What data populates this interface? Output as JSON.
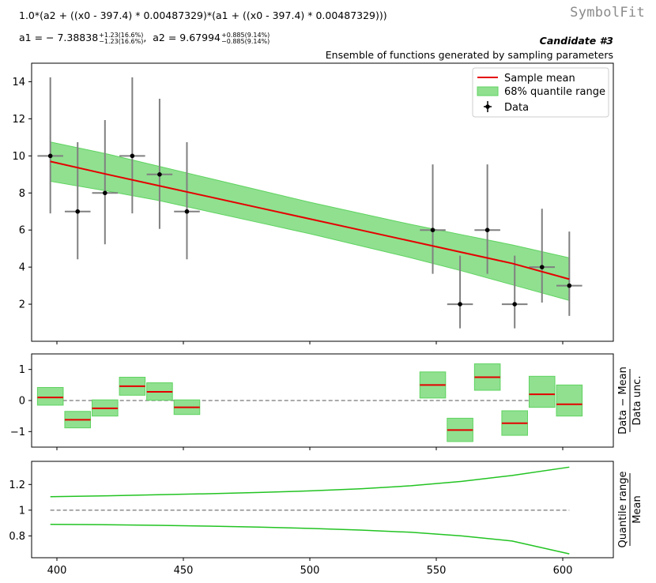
{
  "header": {
    "formula": "1.0*(a2 + ((x0 - 397.4) * 0.00487329)*(a1 + ((x0 - 397.4) * 0.00487329)))",
    "a1_label": "a1 = − 7.38838",
    "a1_up": "+1.23(16.6%)",
    "a1_down": "−1.23(16.6%)",
    "a2_label": "a2 = 9.67994",
    "a2_up": "+0.885(9.14%)",
    "a2_down": "−0.885(9.14%)",
    "logo": "SymbolFit",
    "candidate": "Candidate #3",
    "subtitle": "Ensemble of functions generated by sampling parameters"
  },
  "colors": {
    "mean": "#e50000",
    "band": "#90e090",
    "band_edge": "#5fd35f",
    "data": "#000000",
    "err": "#808080",
    "ratio": "#22c322"
  },
  "chart_data": [
    {
      "type": "scatter",
      "panel": "main",
      "x": [
        397.4,
        408.2,
        419.0,
        429.8,
        440.6,
        451.4,
        548.6,
        559.4,
        570.2,
        581.0,
        591.8,
        602.6
      ],
      "x_err": [
        5.4,
        5.4,
        5.4,
        5.4,
        5.4,
        5.4,
        5.4,
        5.4,
        5.4,
        5.4,
        5.4,
        5.4
      ],
      "y": [
        10,
        7,
        8,
        10,
        9,
        7,
        6,
        2,
        6,
        2,
        4,
        3
      ],
      "y_err_up": [
        4.24,
        3.74,
        3.93,
        4.24,
        4.08,
        3.74,
        3.54,
        2.62,
        3.54,
        2.62,
        3.15,
        2.92
      ],
      "y_err_down": [
        3.1,
        2.58,
        2.77,
        3.1,
        2.94,
        2.58,
        2.36,
        1.3,
        2.36,
        1.3,
        1.91,
        1.63
      ],
      "mean_curve": {
        "x": [
          397.4,
          420,
          440,
          460,
          480,
          500,
          520,
          540,
          560,
          580,
          602.6
        ],
        "y": [
          9.7,
          9.0,
          8.4,
          7.8,
          7.2,
          6.6,
          6.0,
          5.4,
          4.8,
          4.2,
          3.35
        ]
      },
      "band_lower": [
        8.63,
        8.1,
        7.6,
        7.0,
        6.4,
        5.8,
        5.15,
        4.5,
        3.8,
        3.05,
        2.2
      ],
      "band_upper": [
        10.75,
        10.1,
        9.45,
        8.8,
        8.15,
        7.5,
        6.9,
        6.3,
        5.75,
        5.2,
        4.5
      ],
      "legend": [
        "Sample mean",
        "68% quantile range",
        "Data"
      ],
      "legend_position": "top-right",
      "xlim": [
        390,
        620
      ],
      "ylim": [
        0,
        15
      ],
      "y_ticks": [
        "2",
        "4",
        "6",
        "8",
        "10",
        "12",
        "14"
      ]
    },
    {
      "type": "bar",
      "panel": "residuals",
      "ylabel_top": "Data − Mean",
      "ylabel_bottom": "Data unc.",
      "x": [
        397.4,
        408.2,
        419.0,
        429.8,
        440.6,
        451.4,
        548.6,
        559.4,
        570.2,
        581.0,
        591.8,
        602.6
      ],
      "mean": [
        0.1,
        -0.62,
        -0.25,
        0.46,
        0.28,
        -0.22,
        0.5,
        -0.95,
        0.75,
        -0.73,
        0.2,
        -0.12
      ],
      "lower": [
        -0.15,
        -0.88,
        -0.5,
        0.17,
        0.01,
        -0.45,
        0.08,
        -1.32,
        0.33,
        -1.12,
        -0.22,
        -0.5
      ],
      "upper": [
        0.42,
        -0.35,
        0.02,
        0.75,
        0.57,
        0.02,
        0.92,
        -0.57,
        1.18,
        -0.33,
        0.78,
        0.5
      ],
      "ylim": [
        -1.5,
        1.5
      ],
      "y_ticks": [
        "−1",
        "0",
        "1"
      ]
    },
    {
      "type": "line",
      "panel": "quantile_ratio",
      "ylabel_top": "Quantile range",
      "ylabel_bottom": "Mean",
      "x": [
        397.4,
        420,
        440,
        460,
        480,
        500,
        520,
        540,
        560,
        580,
        602.6
      ],
      "upper": [
        1.105,
        1.112,
        1.12,
        1.128,
        1.138,
        1.15,
        1.166,
        1.19,
        1.224,
        1.27,
        1.335
      ],
      "lower": [
        0.89,
        0.887,
        0.882,
        0.876,
        0.868,
        0.858,
        0.845,
        0.828,
        0.8,
        0.76,
        0.66
      ],
      "ylim": [
        0.63,
        1.38
      ],
      "y_ticks": [
        "0.8",
        "1",
        "1.2"
      ],
      "x_ticks": [
        "400",
        "450",
        "500",
        "550",
        "600"
      ]
    }
  ]
}
